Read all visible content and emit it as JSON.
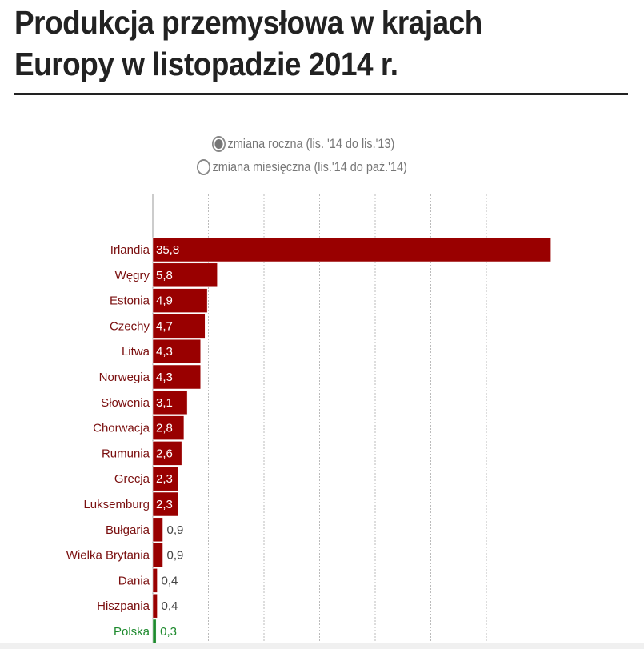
{
  "title": "Produkcja przemysłowa w krajach Europy w listopadzie 2014 r.",
  "title_lines": [
    "Produkcja przemysłowa w krajach",
    "Europy w listopadzie 2014 r."
  ],
  "options": [
    {
      "label": "zmiana roczna (lis. '14 do lis.'13)",
      "selected": true
    },
    {
      "label": "zmiana miesięczna (lis.'14 do paź.'14)",
      "selected": false
    }
  ],
  "colors": {
    "bar": "#990000",
    "highlight": "#1e8a2e",
    "label": "#7a0f0f"
  },
  "chart_data": {
    "type": "bar",
    "orientation": "horizontal",
    "categories": [
      "Irlandia",
      "Węgry",
      "Estonia",
      "Czechy",
      "Litwa",
      "Norwegia",
      "Słowenia",
      "Chorwacja",
      "Rumunia",
      "Grecja",
      "Luksemburg",
      "Bułgaria",
      "Wielka Brytania",
      "Dania",
      "Hiszpania",
      "Polska"
    ],
    "values": [
      35.8,
      5.8,
      4.9,
      4.7,
      4.3,
      4.3,
      3.1,
      2.8,
      2.6,
      2.3,
      2.3,
      0.9,
      0.9,
      0.4,
      0.4,
      0.3
    ],
    "value_labels": [
      "35,8",
      "5,8",
      "4,9",
      "4,7",
      "4,3",
      "4,3",
      "3,1",
      "2,8",
      "2,6",
      "2,3",
      "2,3",
      "0,9",
      "0,9",
      "0,4",
      "0,4",
      "0,3"
    ],
    "highlight": "Polska",
    "xlim": [
      0,
      40
    ],
    "gridlines": [
      5,
      10,
      15,
      20,
      25,
      30,
      35
    ],
    "grid": true
  }
}
